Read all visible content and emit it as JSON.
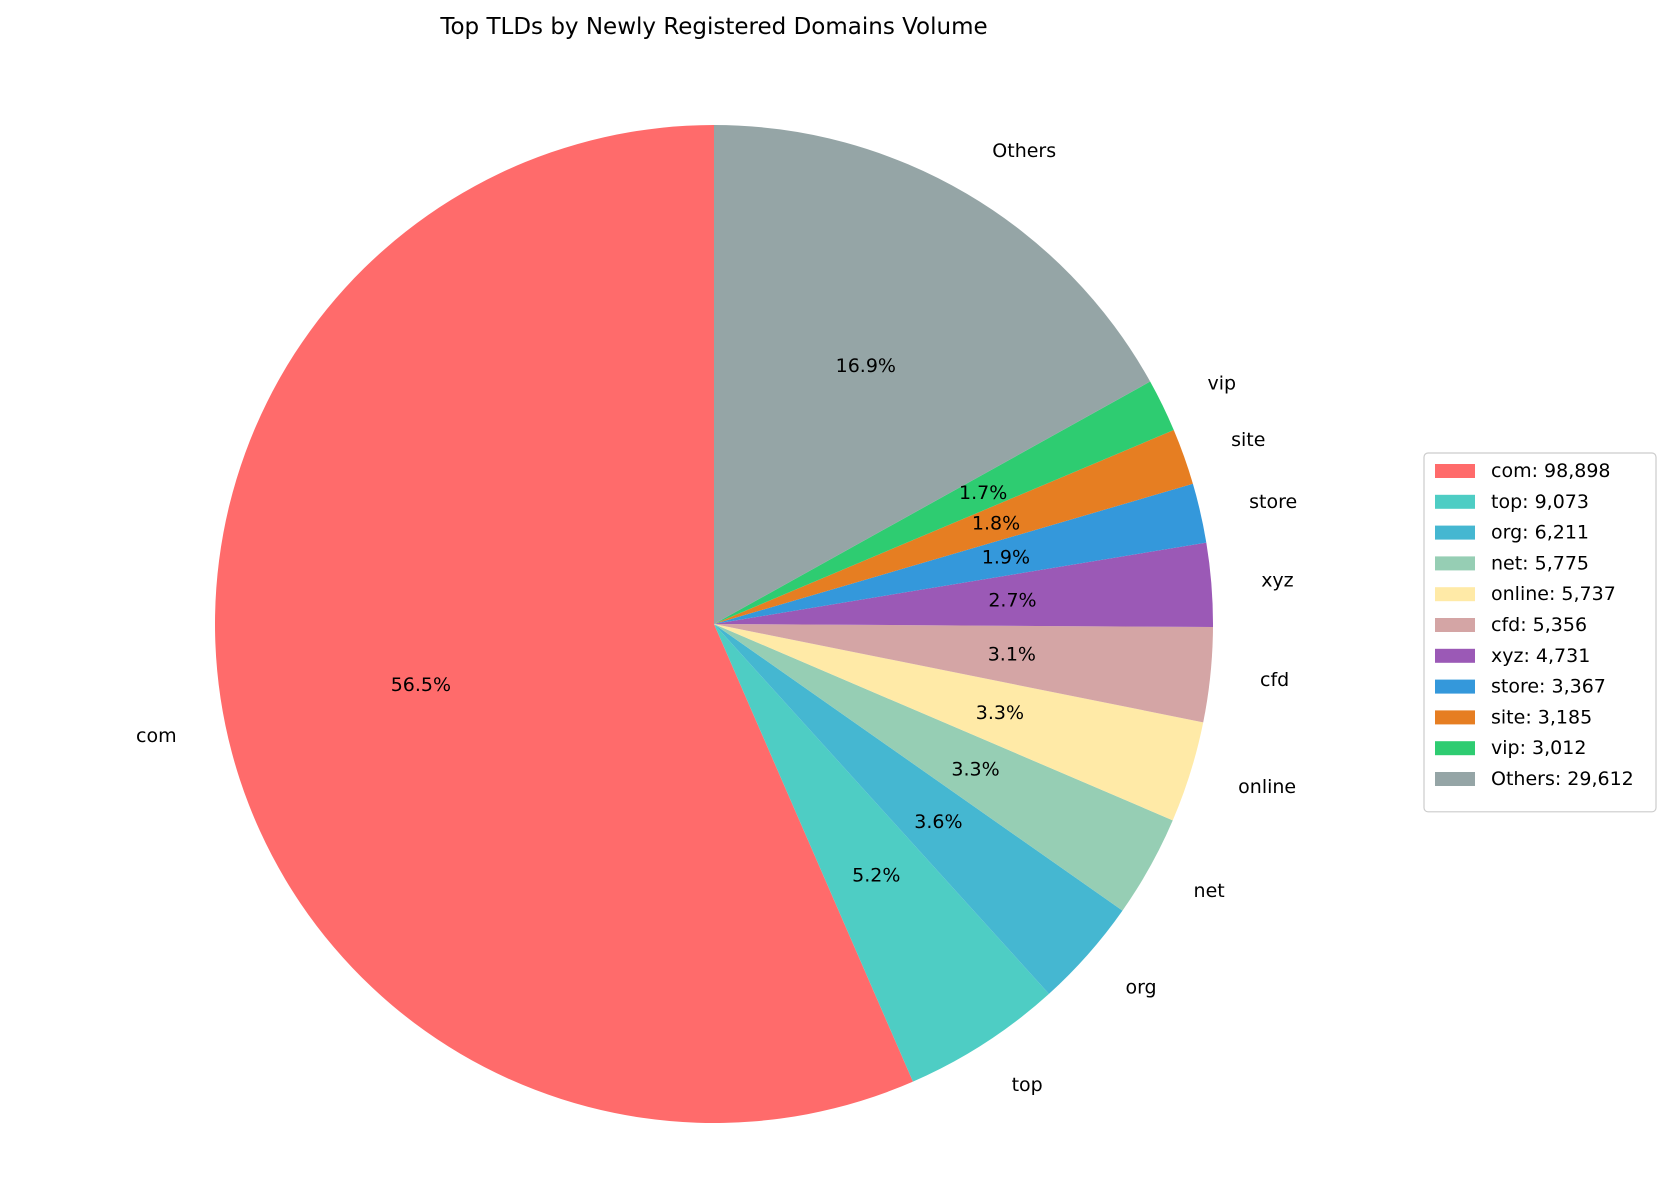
{
  "chart_data": {
    "type": "pie",
    "title": "Top TLDs by Newly Registered Domains Volume",
    "start_angle_deg": 90,
    "direction": "counterclockwise",
    "legend_position": "right",
    "slices": [
      {
        "label": "com",
        "value": 98898,
        "pct_label": "56.5%",
        "legend": "com: 98,898",
        "color": "#ff6b6b"
      },
      {
        "label": "top",
        "value": 9073,
        "pct_label": "5.2%",
        "legend": "top: 9,073",
        "color": "#4ecdc4"
      },
      {
        "label": "org",
        "value": 6211,
        "pct_label": "3.6%",
        "legend": "org: 6,211",
        "color": "#45b7d1"
      },
      {
        "label": "net",
        "value": 5775,
        "pct_label": "3.3%",
        "legend": "net: 5,775",
        "color": "#96ceb4"
      },
      {
        "label": "online",
        "value": 5737,
        "pct_label": "3.3%",
        "legend": "online: 5,737",
        "color": "#ffeaa7"
      },
      {
        "label": "cfd",
        "value": 5356,
        "pct_label": "3.1%",
        "legend": "cfd: 5,356",
        "color": "#d4a5a5"
      },
      {
        "label": "xyz",
        "value": 4731,
        "pct_label": "2.7%",
        "legend": "xyz: 4,731",
        "color": "#9b59b6"
      },
      {
        "label": "store",
        "value": 3367,
        "pct_label": "1.9%",
        "legend": "store: 3,367",
        "color": "#3498db"
      },
      {
        "label": "site",
        "value": 3185,
        "pct_label": "1.8%",
        "legend": "site: 3,185",
        "color": "#e67e22"
      },
      {
        "label": "vip",
        "value": 3012,
        "pct_label": "1.7%",
        "legend": "vip: 3,012",
        "color": "#2ecc71"
      },
      {
        "label": "Others",
        "value": 29612,
        "pct_label": "16.9%",
        "legend": "Others: 29,612",
        "color": "#95a5a6"
      }
    ]
  }
}
